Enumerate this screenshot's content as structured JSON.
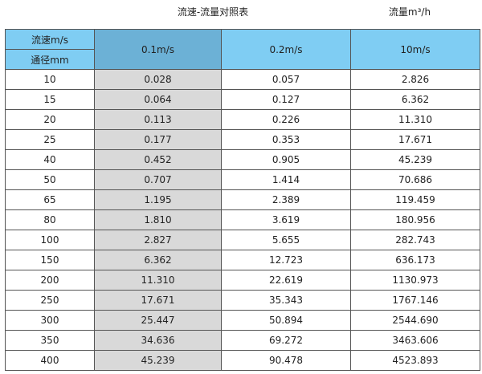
{
  "title": "流速-流量对照表",
  "unit": "流量m³/h",
  "header": {
    "velocity_label": "流速m/s",
    "diameter_label": "通径mm",
    "columns": [
      "0.1m/s",
      "0.2m/s",
      "10m/s"
    ]
  },
  "colors": {
    "header": "#7fcdf3",
    "header_highlight": "#6cb1d6",
    "column_highlight": "#d9d9d9"
  },
  "rows": [
    [
      "10",
      "0.028",
      "0.057",
      "2.826"
    ],
    [
      "15",
      "0.064",
      "0.127",
      "6.362"
    ],
    [
      "20",
      "0.113",
      "0.226",
      "11.310"
    ],
    [
      "25",
      "0.177",
      "0.353",
      "17.671"
    ],
    [
      "40",
      "0.452",
      "0.905",
      "45.239"
    ],
    [
      "50",
      "0.707",
      "1.414",
      "70.686"
    ],
    [
      "65",
      "1.195",
      "2.389",
      "119.459"
    ],
    [
      "80",
      "1.810",
      "3.619",
      "180.956"
    ],
    [
      "100",
      "2.827",
      "5.655",
      "282.743"
    ],
    [
      "150",
      "6.362",
      "12.723",
      "636.173"
    ],
    [
      "200",
      "11.310",
      "22.619",
      "1130.973"
    ],
    [
      "250",
      "17.671",
      "35.343",
      "1767.146"
    ],
    [
      "300",
      "25.447",
      "50.894",
      "2544.690"
    ],
    [
      "350",
      "34.636",
      "69.272",
      "3463.606"
    ],
    [
      "400",
      "45.239",
      "90.478",
      "4523.893"
    ]
  ]
}
